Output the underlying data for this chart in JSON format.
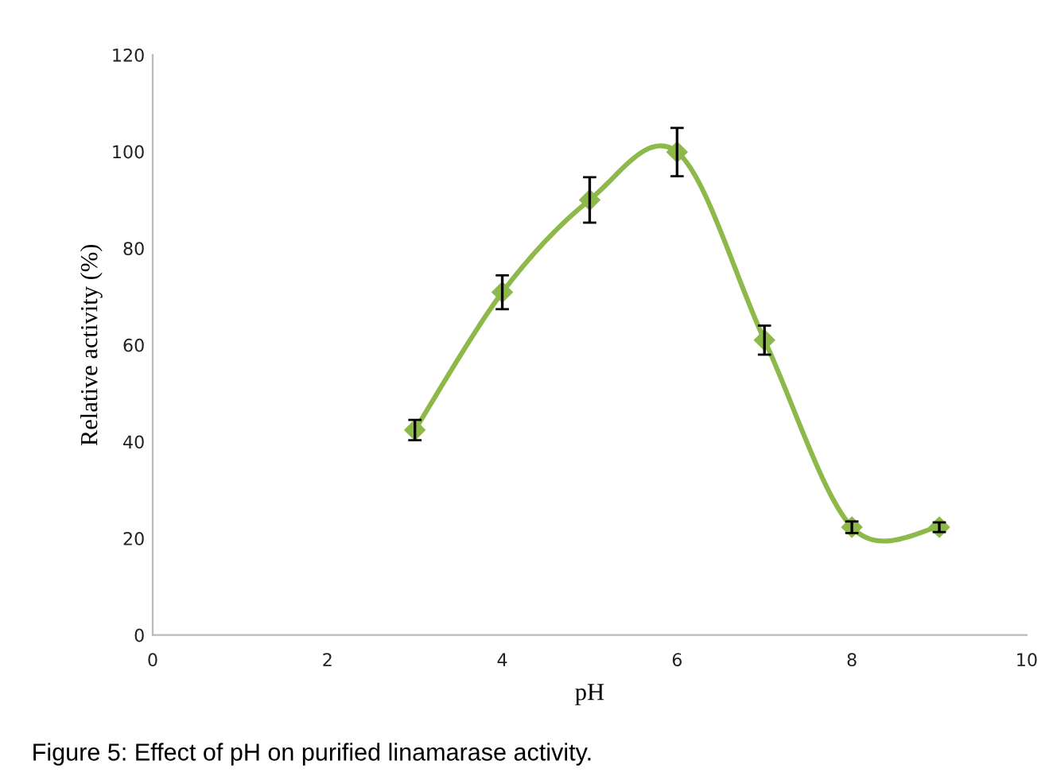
{
  "chart_data": {
    "type": "line",
    "xlabel": "pH",
    "ylabel": "Relative activity (%)",
    "x": [
      3,
      4,
      5,
      6,
      7,
      8,
      9
    ],
    "series": [
      {
        "color": "#8db84a",
        "values": [
          42.4,
          70.9,
          90.0,
          99.9,
          61.0,
          22.3,
          22.3
        ],
        "errors": [
          2.1,
          3.5,
          4.7,
          5,
          3,
          1.2,
          1
        ]
      }
    ],
    "xlim": [
      0,
      10
    ],
    "xticks": [
      0,
      2,
      4,
      6,
      8,
      10
    ],
    "ylim": [
      0,
      120
    ],
    "yticks": [
      0,
      20,
      40,
      60,
      80,
      100,
      120
    ],
    "grid": false,
    "legend": false,
    "marker": "diamond",
    "line_style": "solid",
    "annotations": [
      "Figure 5: Effect of pH on purified linamarase activity."
    ]
  }
}
